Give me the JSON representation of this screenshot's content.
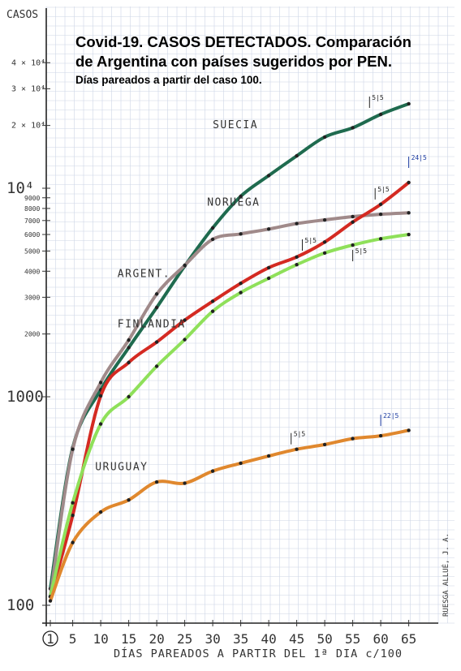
{
  "chart_data": {
    "type": "line",
    "title": "Covid-19. CASOS DETECTADOS. Comparación",
    "title2": "de Argentina con países sugeridos por PEN.",
    "subtitle": "Días pareados a partir del caso 100.",
    "xlabel": "DÍAS PAREADOS A PARTIR DEL 1ª DIA c/100",
    "ylabel": "CASOS",
    "y_scale": "log",
    "ylim": [
      100,
      40000
    ],
    "xlim": [
      0,
      67
    ],
    "grid": true,
    "x_ticks": [
      "1",
      "5",
      "10",
      "15",
      "20",
      "25",
      "30",
      "35",
      "40",
      "45",
      "50",
      "55",
      "60",
      "65"
    ],
    "y_ticks": [
      {
        "value": 100,
        "label": "100"
      },
      {
        "value": 1000,
        "label": "1000"
      },
      {
        "value": 2000,
        "label": "2000"
      },
      {
        "value": 3000,
        "label": "3000"
      },
      {
        "value": 4000,
        "label": "4000"
      },
      {
        "value": 5000,
        "label": "5000"
      },
      {
        "value": 6000,
        "label": "6000"
      },
      {
        "value": 7000,
        "label": "7000"
      },
      {
        "value": 8000,
        "label": "8000"
      },
      {
        "value": 9000,
        "label": "9000"
      },
      {
        "value": 10000,
        "label": "10⁴"
      },
      {
        "value": 20000,
        "label": "2 × 10⁴"
      },
      {
        "value": 30000,
        "label": "3 × 10⁴"
      },
      {
        "value": 40000,
        "label": "4 × 10⁴"
      }
    ],
    "series": [
      {
        "name": "SUECIA",
        "color": "#1f6b4f",
        "x": [
          1,
          5,
          10,
          15,
          20,
          25,
          30,
          35,
          40,
          45,
          50,
          55,
          60,
          65
        ],
        "y": [
          120,
          570,
          1080,
          1720,
          2680,
          4240,
          6450,
          9150,
          11500,
          14300,
          17600,
          19500,
          22600,
          25400
        ]
      },
      {
        "name": "NORUEGA",
        "color": "#a08a8a",
        "x": [
          1,
          5,
          10,
          15,
          20,
          25,
          30,
          35,
          40,
          45,
          50,
          55,
          60,
          65
        ],
        "y": [
          110,
          560,
          1170,
          1870,
          3110,
          4270,
          5690,
          6040,
          6370,
          6770,
          7050,
          7310,
          7500,
          7620
        ]
      },
      {
        "name": "ARGENT.",
        "color": "#d42a22",
        "x": [
          1,
          5,
          10,
          15,
          20,
          25,
          30,
          35,
          40,
          45,
          50,
          55,
          60,
          65
        ],
        "y": [
          110,
          270,
          1010,
          1460,
          1830,
          2330,
          2870,
          3500,
          4160,
          4680,
          5520,
          6880,
          8370,
          10650
        ]
      },
      {
        "name": "FINLANDIA",
        "color": "#8fe05a",
        "x": [
          1,
          5,
          10,
          15,
          20,
          25,
          30,
          35,
          40,
          45,
          50,
          55,
          60,
          65
        ],
        "y": [
          110,
          310,
          740,
          1000,
          1400,
          1880,
          2570,
          3160,
          3700,
          4300,
          4890,
          5340,
          5720,
          6000
        ]
      },
      {
        "name": "URUGUAY",
        "color": "#e0882e",
        "x": [
          1,
          5,
          10,
          15,
          20,
          25,
          30,
          35,
          40,
          45,
          50,
          55,
          60,
          65
        ],
        "y": [
          105,
          200,
          280,
          320,
          390,
          385,
          440,
          480,
          520,
          560,
          590,
          630,
          650,
          690
        ]
      }
    ],
    "annotations": [
      {
        "text": "5|5",
        "series": "SUECIA"
      },
      {
        "text": "24|5",
        "series": "ARGENT."
      },
      {
        "text": "5|5",
        "series": "ARGENT."
      },
      {
        "text": "5|5",
        "series": "NORUEGA"
      },
      {
        "text": "5|5",
        "series": "FINLANDIA"
      },
      {
        "text": "5|5",
        "series": "URUGUAY"
      },
      {
        "text": "22|5",
        "series": "URUGUAY"
      }
    ],
    "signature": "RUESGA ALLUÉ, J. A."
  }
}
